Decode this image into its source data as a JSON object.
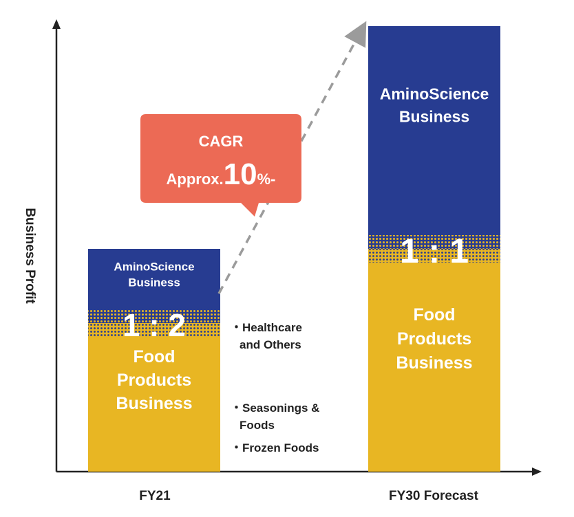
{
  "chart_data": {
    "type": "bar",
    "stacked": true,
    "title": "",
    "xlabel": "",
    "ylabel": "Business Profit",
    "categories": [
      "FY21",
      "FY30 Forecast"
    ],
    "series": [
      {
        "name": "Food Products Business",
        "label_lines": [
          "Food",
          "Products",
          "Business"
        ],
        "color": "#E8B623",
        "values": [
          2,
          3
        ]
      },
      {
        "name": "AminoScience Business",
        "label_lines": [
          "AminoScience",
          "Business"
        ],
        "color": "#273C91",
        "values": [
          1,
          3
        ]
      }
    ],
    "ratio_labels": [
      "1 : 2",
      "1 : 1"
    ],
    "annotations": {
      "cagr_line1": "CAGR",
      "cagr_prefix": "Approx.",
      "cagr_value": "10",
      "cagr_suffix": "%-",
      "cagr_color": "#EC6A55",
      "healthcare": [
        "・Healthcare",
        "and Others"
      ],
      "seasonings": [
        "・Seasonings &",
        "Foods"
      ],
      "frozen": "・Frozen Foods"
    },
    "axis_ticks": false,
    "grid": false,
    "legend": "none"
  }
}
